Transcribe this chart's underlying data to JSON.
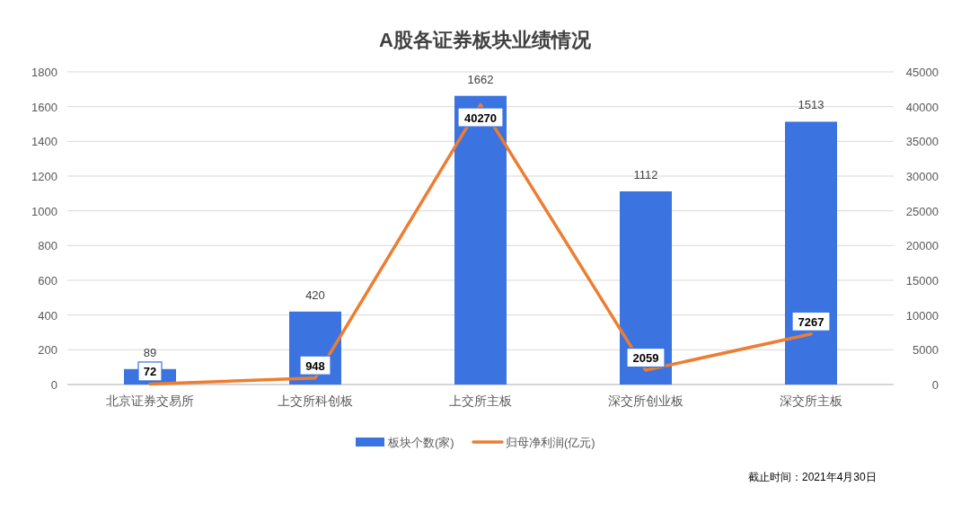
{
  "chart_data": {
    "type": "bar",
    "title": "A股各证券板块业绩情况",
    "categories": [
      "北京证券交易所",
      "上交所科创板",
      "上交所主板",
      "深交所创业板",
      "深交所主板"
    ],
    "series": [
      {
        "name": "板块个数(家)",
        "color": "#3b73e0",
        "values": [
          89,
          420,
          1662,
          1112,
          1513
        ]
      },
      {
        "name": "归母净利润(亿元)",
        "type": "line",
        "axis": "y2",
        "marker": "none",
        "color": "#ed7d31",
        "values": [
          72,
          948,
          40270,
          2059,
          7267
        ]
      }
    ],
    "ylim": [
      0,
      1800
    ],
    "yticks": [
      0,
      200,
      400,
      600,
      800,
      1000,
      1200,
      1400,
      1600,
      1800
    ],
    "y2lim": [
      0,
      45000
    ],
    "y2ticks": [
      0,
      5000,
      10000,
      15000,
      20000,
      25000,
      30000,
      35000,
      40000,
      45000
    ],
    "grid": "y",
    "legend": "bottom",
    "data_labels": true,
    "annotations": [
      "截止时间：2021年4月30日"
    ]
  }
}
